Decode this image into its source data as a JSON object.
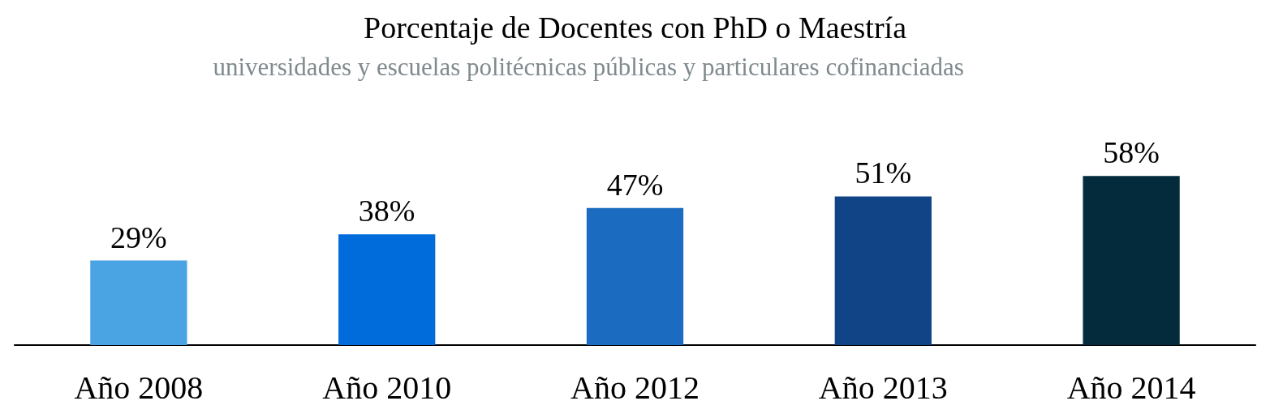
{
  "chart_data": {
    "type": "bar",
    "title": "Porcentaje de Docentes con PhD o Maestría",
    "subtitle": "universidades y escuelas politécnicas públicas y particulares cofinanciadas",
    "categories": [
      "Año 2008",
      "Año 2010",
      "Año 2012",
      "Año 2013",
      "Año 2014"
    ],
    "values": [
      29,
      38,
      47,
      51,
      58
    ],
    "colors": [
      "#4aa3e2",
      "#006cdc",
      "#1b6bc0",
      "#114486",
      "#032b3b"
    ],
    "value_labels": [
      "29%",
      "38%",
      "47%",
      "51%",
      "58%"
    ]
  }
}
